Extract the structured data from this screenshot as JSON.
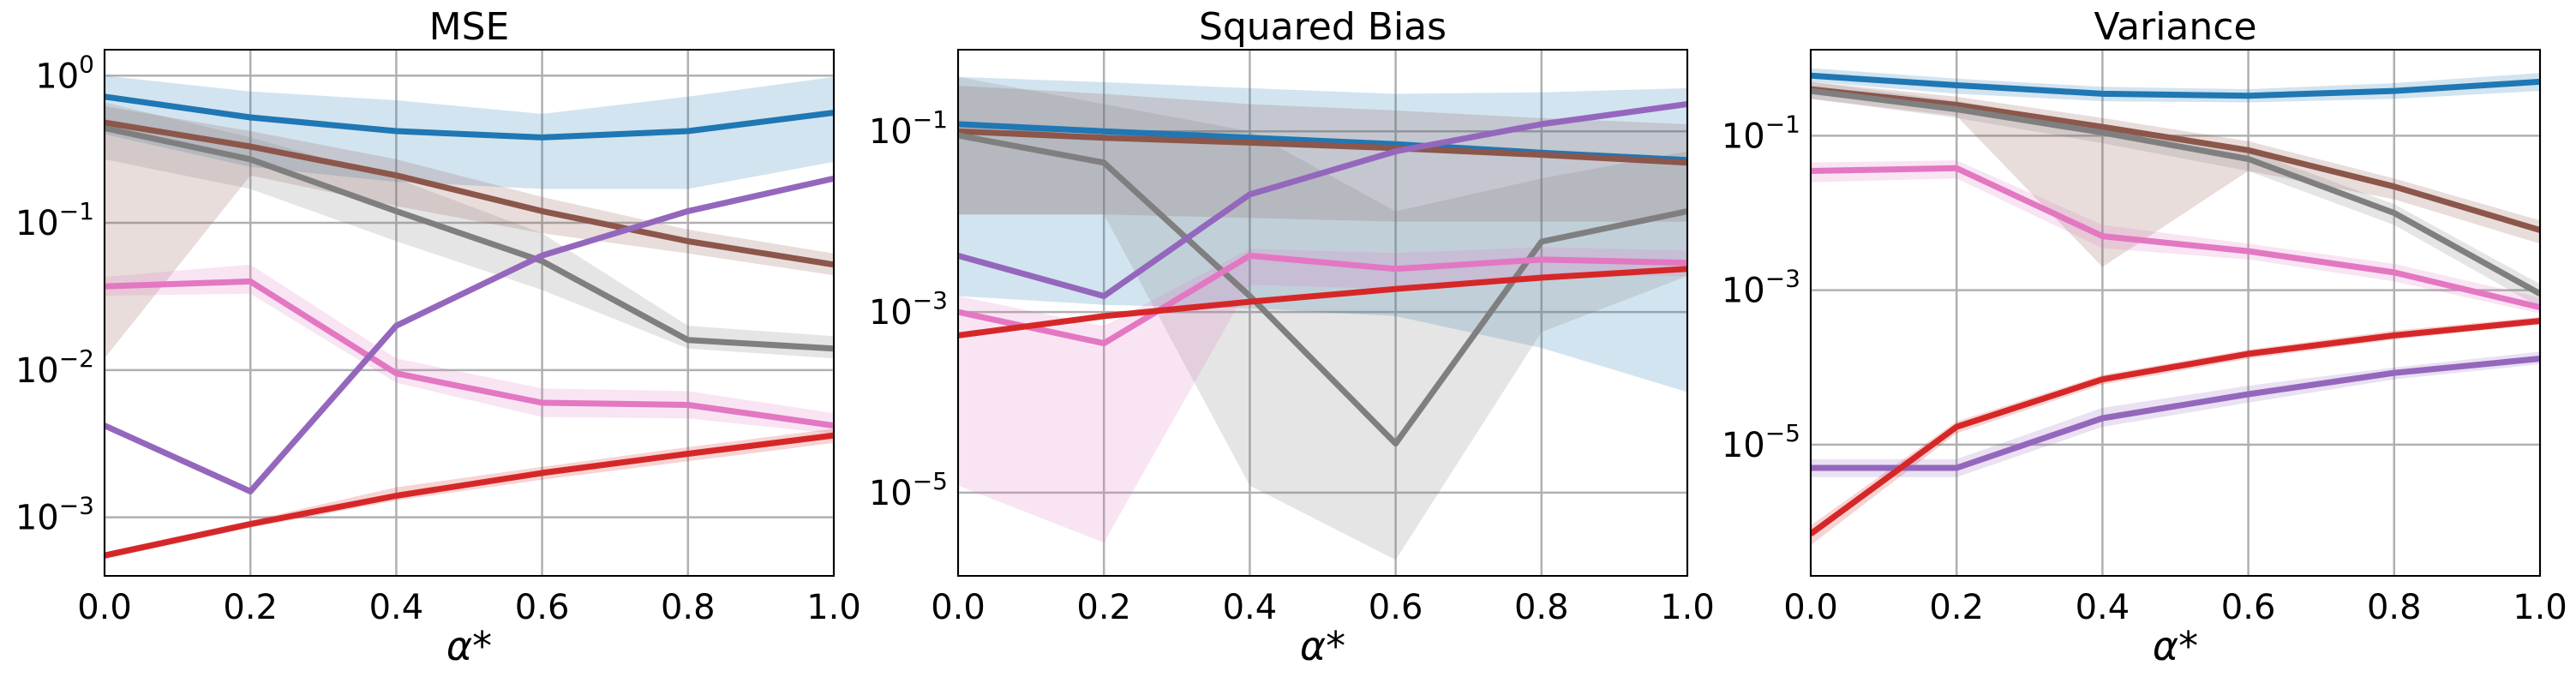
{
  "chart_data": [
    {
      "type": "line",
      "title": "MSE",
      "xlabel": "α*",
      "ylabel": "",
      "yscale": "log",
      "xlim": [
        0.0,
        1.0
      ],
      "ylim": [
        0.0004,
        1.5
      ],
      "grid": true,
      "x": [
        0.0,
        0.2,
        0.4,
        0.6,
        0.8,
        1.0
      ],
      "x_ticks": [
        "0.0",
        "0.2",
        "0.4",
        "0.6",
        "0.8",
        "1.0"
      ],
      "y_ticks": [
        {
          "value": 1,
          "base": "10",
          "exp": "0"
        },
        {
          "value": 0.1,
          "base": "10",
          "exp": "−1"
        },
        {
          "value": 0.01,
          "base": "10",
          "exp": "−2"
        },
        {
          "value": 0.001,
          "base": "10",
          "exp": "−3"
        }
      ],
      "series": [
        {
          "color": "#1f77b4",
          "values": [
            0.72,
            0.52,
            0.42,
            0.38,
            0.42,
            0.56
          ],
          "lower": [
            0.4,
            0.24,
            0.19,
            0.17,
            0.17,
            0.26
          ],
          "upper": [
            1.0,
            0.78,
            0.68,
            0.55,
            0.72,
            0.98
          ]
        },
        {
          "color": "#8c564b",
          "values": [
            0.48,
            0.33,
            0.21,
            0.12,
            0.075,
            0.052
          ],
          "lower": [
            0.012,
            0.21,
            0.13,
            0.085,
            0.062,
            0.044
          ],
          "upper": [
            0.62,
            0.42,
            0.27,
            0.15,
            0.09,
            0.062
          ]
        },
        {
          "color": "#7f7f7f",
          "values": [
            0.44,
            0.27,
            0.12,
            0.055,
            0.016,
            0.014
          ],
          "lower": [
            0.27,
            0.17,
            0.075,
            0.035,
            0.014,
            0.012
          ],
          "upper": [
            0.66,
            0.38,
            0.2,
            0.085,
            0.02,
            0.017
          ]
        },
        {
          "color": "#e377c2",
          "values": [
            0.037,
            0.04,
            0.0095,
            0.006,
            0.0058,
            0.0042
          ],
          "lower": [
            0.032,
            0.033,
            0.0082,
            0.0048,
            0.0047,
            0.0037
          ],
          "upper": [
            0.043,
            0.052,
            0.012,
            0.0075,
            0.0072,
            0.0051
          ]
        },
        {
          "color": "#9467bd",
          "values": [
            0.0042,
            0.0015,
            0.02,
            0.06,
            0.12,
            0.2
          ]
        },
        {
          "color": "#d62728",
          "values": [
            0.00055,
            0.0009,
            0.0014,
            0.002,
            0.0027,
            0.0036
          ],
          "lower": [
            0.00052,
            0.00085,
            0.0013,
            0.0018,
            0.0024,
            0.0032
          ],
          "upper": [
            0.00058,
            0.00095,
            0.0016,
            0.0022,
            0.003,
            0.004
          ]
        }
      ]
    },
    {
      "type": "line",
      "title": "Squared Bias",
      "xlabel": "α*",
      "ylabel": "",
      "yscale": "log",
      "xlim": [
        0.0,
        1.0
      ],
      "ylim": [
        1.2e-06,
        0.8
      ],
      "grid": true,
      "x": [
        0.0,
        0.2,
        0.4,
        0.6,
        0.8,
        1.0
      ],
      "x_ticks": [
        "0.0",
        "0.2",
        "0.4",
        "0.6",
        "0.8",
        "1.0"
      ],
      "y_ticks": [
        {
          "value": 0.1,
          "base": "10",
          "exp": "−1"
        },
        {
          "value": 0.001,
          "base": "10",
          "exp": "−3"
        },
        {
          "value": 1e-05,
          "base": "10",
          "exp": "−5"
        }
      ],
      "series": [
        {
          "color": "#1f77b4",
          "values": [
            0.12,
            0.1,
            0.085,
            0.072,
            0.058,
            0.048
          ],
          "lower": [
            0.0015,
            0.0012,
            0.0011,
            0.0009,
            0.0004,
            0.00013
          ],
          "upper": [
            0.4,
            0.35,
            0.3,
            0.26,
            0.27,
            0.3
          ]
        },
        {
          "color": "#8c564b",
          "values": [
            0.1,
            0.085,
            0.075,
            0.065,
            0.055,
            0.045
          ],
          "lower": [
            0.012,
            0.012,
            0.011,
            0.01,
            0.01,
            0.01
          ],
          "upper": [
            0.32,
            0.26,
            0.2,
            0.17,
            0.14,
            0.12
          ]
        },
        {
          "color": "#7f7f7f",
          "values": [
            0.09,
            0.045,
            0.0015,
            3.5e-05,
            0.006,
            0.013
          ],
          "lower": [
            0.012,
            0.012,
            1.2e-05,
            1.8e-06,
            0.0006,
            0.0025
          ],
          "upper": [
            0.4,
            0.2,
            0.1,
            0.013,
            0.03,
            0.06
          ]
        },
        {
          "color": "#e377c2",
          "values": [
            0.001,
            0.00045,
            0.0042,
            0.003,
            0.0038,
            0.0035
          ],
          "lower": [
            1.2e-05,
            2.8e-06,
            0.002,
            0.0018,
            0.0025,
            0.0025
          ],
          "upper": [
            0.0015,
            0.0007,
            0.005,
            0.0045,
            0.0052,
            0.0048
          ]
        },
        {
          "color": "#9467bd",
          "values": [
            0.0042,
            0.0015,
            0.02,
            0.06,
            0.12,
            0.2
          ]
        },
        {
          "color": "#d62728",
          "values": [
            0.00055,
            0.0009,
            0.0013,
            0.0018,
            0.0024,
            0.003
          ]
        }
      ]
    },
    {
      "type": "line",
      "title": "Variance",
      "xlabel": "α*",
      "ylabel": "",
      "yscale": "log",
      "xlim": [
        0.0,
        1.0
      ],
      "ylim": [
        2e-07,
        1.3
      ],
      "grid": true,
      "x": [
        0.0,
        0.2,
        0.4,
        0.6,
        0.8,
        1.0
      ],
      "x_ticks": [
        "0.0",
        "0.2",
        "0.4",
        "0.6",
        "0.8",
        "1.0"
      ],
      "y_ticks": [
        {
          "value": 0.1,
          "base": "10",
          "exp": "−1"
        },
        {
          "value": 0.001,
          "base": "10",
          "exp": "−3"
        },
        {
          "value": 1e-05,
          "base": "10",
          "exp": "−5"
        }
      ],
      "series": [
        {
          "color": "#1f77b4",
          "values": [
            0.6,
            0.45,
            0.35,
            0.33,
            0.38,
            0.5
          ],
          "lower": [
            0.5,
            0.35,
            0.28,
            0.27,
            0.3,
            0.38
          ],
          "upper": [
            0.75,
            0.55,
            0.43,
            0.4,
            0.48,
            0.65
          ]
        },
        {
          "color": "#8c564b",
          "values": [
            0.4,
            0.25,
            0.13,
            0.065,
            0.022,
            0.006
          ],
          "lower": [
            0.3,
            0.18,
            0.002,
            0.035,
            0.015,
            0.004
          ],
          "upper": [
            0.5,
            0.32,
            0.17,
            0.085,
            0.028,
            0.008
          ]
        },
        {
          "color": "#7f7f7f",
          "values": [
            0.38,
            0.22,
            0.11,
            0.05,
            0.01,
            0.0009
          ],
          "lower": [
            0.3,
            0.17,
            0.08,
            0.035,
            0.007,
            0.0006
          ],
          "upper": [
            0.5,
            0.28,
            0.14,
            0.065,
            0.013,
            0.0012
          ]
        },
        {
          "color": "#e377c2",
          "values": [
            0.035,
            0.038,
            0.005,
            0.0032,
            0.0017,
            0.0006
          ],
          "lower": [
            0.025,
            0.028,
            0.0035,
            0.0025,
            0.0013,
            0.0005
          ],
          "upper": [
            0.045,
            0.048,
            0.007,
            0.004,
            0.0022,
            0.0008
          ]
        },
        {
          "color": "#9467bd",
          "values": [
            5e-06,
            5e-06,
            2.2e-05,
            4.5e-05,
            8.5e-05,
            0.00013
          ],
          "lower": [
            3.8e-06,
            3.8e-06,
            1.7e-05,
            3.5e-05,
            7e-05,
            0.00011
          ],
          "upper": [
            6.5e-06,
            6.5e-06,
            3e-05,
            5.8e-05,
            0.0001,
            0.00016
          ]
        },
        {
          "color": "#d62728",
          "values": [
            7e-07,
            1.7e-05,
            7e-05,
            0.00015,
            0.00026,
            0.0004
          ],
          "lower": [
            5e-07,
            1.4e-05,
            6e-05,
            0.00013,
            0.00023,
            0.00036
          ],
          "upper": [
            9e-07,
            2e-05,
            8e-05,
            0.00017,
            0.0003,
            0.00045
          ]
        }
      ]
    }
  ]
}
